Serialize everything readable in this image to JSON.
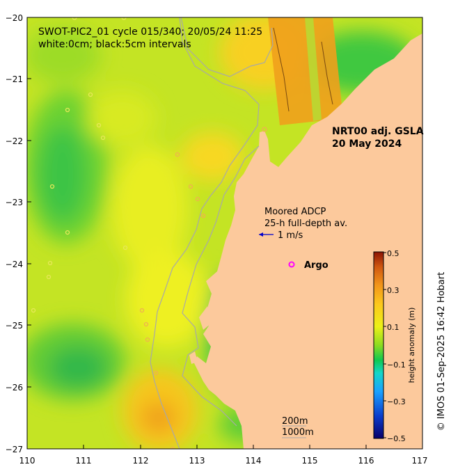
{
  "title": {
    "line1": "SWOT-PIC2_01 cycle 015/340; 20/05/24 11:25",
    "line2": "white:0cm; black:5cm intervals"
  },
  "product": {
    "line1": "NRT00 adj. GSLA",
    "line2": "20 May 2024"
  },
  "adcp": {
    "line1": "Moored ADCP",
    "line2": "25-h full-depth av.",
    "scale_label": "1 m/s"
  },
  "argo": {
    "label": "Argo",
    "marker": "o"
  },
  "isobaths": {
    "shallow": "200m",
    "deep": "1000m"
  },
  "axes": {
    "x_ticks": [
      "110",
      "111",
      "112",
      "113",
      "114",
      "115",
      "116",
      "117"
    ],
    "y_ticks": [
      "−20",
      "−21",
      "−22",
      "−23",
      "−24",
      "−25",
      "−26",
      "−27"
    ],
    "x_range": [
      110,
      117
    ],
    "y_range": [
      -27,
      -20
    ]
  },
  "colorbar": {
    "label": "height anomaly (m)",
    "ticks": [
      "0.5",
      "0.3",
      "0.1",
      "−0.1",
      "−0.3",
      "−0.5"
    ],
    "range": [
      -0.5,
      0.5
    ]
  },
  "credit": "© IMOS 01-Sep-2025 16:42 Hobart",
  "colors": {
    "land": "#fcc99c",
    "field_base": "#bfe61f",
    "argo": "#ff00ff",
    "adcp_arrow": "#0000cc",
    "isobath": "#a8a8a8"
  }
}
